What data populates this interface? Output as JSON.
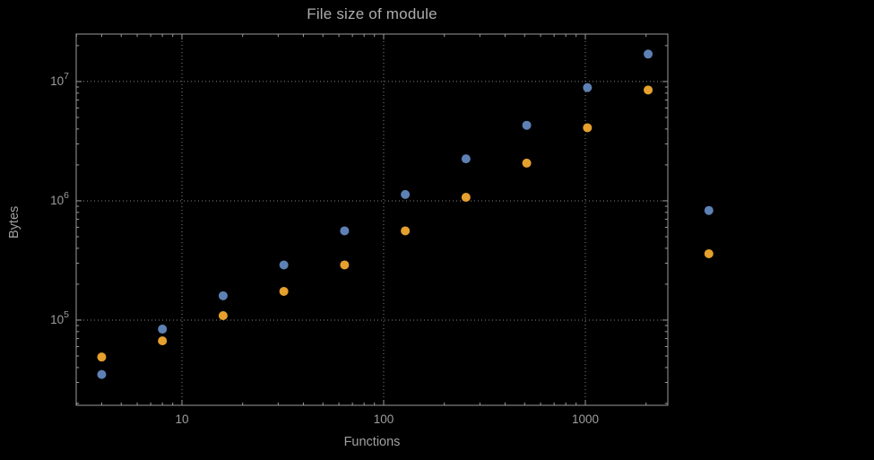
{
  "background": "#000000",
  "colors": {
    "frame": "#9a9a9a",
    "grid": "#858585",
    "tick_text": "#9e9e9e",
    "label_text": "#a0a0a0",
    "title_text": "#adadad",
    "series_blue": "#5e81b5",
    "series_orange": "#e5a02d"
  },
  "chart_data": {
    "type": "scatter",
    "title": "File size of module",
    "xlabel": "Functions",
    "ylabel": "Bytes",
    "x_scale": "log",
    "y_scale": "log",
    "grid": "dotted-at-decades",
    "legend": "none",
    "frame": true,
    "xlim": [
      2.99,
      2564
    ],
    "ylim": [
      19300,
      25000000
    ],
    "x_ticks": [
      {
        "v": 10,
        "label": "10"
      },
      {
        "v": 100,
        "label": "100"
      },
      {
        "v": 1000,
        "label": "1000"
      }
    ],
    "y_ticks": [
      {
        "v": 100000,
        "base": "10",
        "exp": "5"
      },
      {
        "v": 1000000,
        "base": "10",
        "exp": "6"
      },
      {
        "v": 10000000,
        "base": "10",
        "exp": "7"
      }
    ],
    "x": [
      4,
      8,
      16,
      32,
      64,
      128,
      256,
      512,
      1024,
      2048,
      4096
    ],
    "series": [
      {
        "name": "series-1-blue",
        "color": "#5e81b5",
        "values": [
          35000,
          84000,
          160000,
          290000,
          560000,
          1130000,
          2250000,
          4300000,
          8900000,
          17000000,
          830000
        ]
      },
      {
        "name": "series-2-orange",
        "color": "#e5a02d",
        "values": [
          49000,
          67000,
          109000,
          174000,
          290000,
          560000,
          1070000,
          2070000,
          4100000,
          8500000,
          360000
        ]
      }
    ],
    "point_radius": 5,
    "clip_points": false
  }
}
